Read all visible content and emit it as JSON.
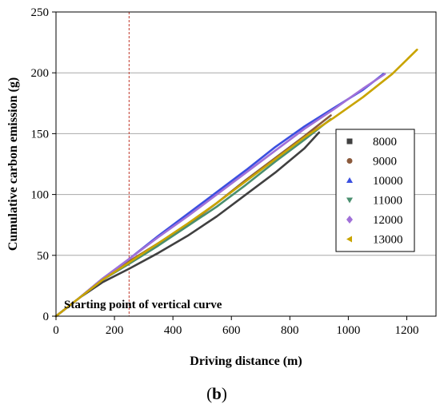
{
  "chart_data": {
    "type": "line",
    "xlabel": "Driving distance (m)",
    "ylabel": "Cumulative carbon emission (g)",
    "xlim": [
      0,
      1300
    ],
    "ylim": [
      0,
      250
    ],
    "xticks": [
      0,
      200,
      400,
      600,
      800,
      1000,
      1200
    ],
    "yticks": [
      0,
      50,
      100,
      150,
      200,
      250
    ],
    "grid": "horizontal",
    "legend_position": "right",
    "panel_label": "(b)",
    "annotation": {
      "text": "Starting point of vertical curve",
      "x_value": 250,
      "color": "#c0392b"
    },
    "series": [
      {
        "name": "8000",
        "color": "#404040",
        "marker": "square",
        "x": [
          0,
          80,
          160,
          250,
          350,
          450,
          550,
          650,
          750,
          850,
          900
        ],
        "y": [
          0,
          15,
          28,
          39,
          52,
          66,
          82,
          100,
          118,
          138,
          151
        ]
      },
      {
        "name": "9000",
        "color": "#8b5a3c",
        "marker": "circle",
        "x": [
          0,
          80,
          160,
          250,
          350,
          450,
          550,
          650,
          750,
          850,
          940
        ],
        "y": [
          0,
          15,
          31,
          45,
          60,
          75,
          93,
          112,
          130,
          148,
          165
        ]
      },
      {
        "name": "10000",
        "color": "#3a4fe0",
        "marker": "triangle-up",
        "x": [
          0,
          80,
          160,
          250,
          350,
          450,
          550,
          650,
          750,
          850,
          950,
          1050,
          1120
        ],
        "y": [
          0,
          15,
          31,
          47,
          66,
          84,
          102,
          120,
          139,
          156,
          171,
          186,
          199
        ]
      },
      {
        "name": "11000",
        "color": "#4a8f6f",
        "marker": "triangle-down",
        "x": [
          0,
          80,
          160,
          250,
          350,
          450,
          550,
          650,
          750,
          850,
          940
        ],
        "y": [
          0,
          15,
          30,
          43,
          58,
          74,
          90,
          108,
          127,
          145,
          162
        ]
      },
      {
        "name": "12000",
        "color": "#a070d8",
        "marker": "diamond",
        "x": [
          0,
          80,
          160,
          250,
          350,
          450,
          550,
          650,
          750,
          850,
          950,
          1050,
          1125
        ],
        "y": [
          0,
          15,
          31,
          47,
          65,
          82,
          100,
          118,
          136,
          154,
          170,
          187,
          199
        ]
      },
      {
        "name": "13000",
        "color": "#c9a400",
        "marker": "triangle-left",
        "x": [
          0,
          80,
          160,
          250,
          350,
          450,
          550,
          650,
          750,
          850,
          950,
          1050,
          1150,
          1235
        ],
        "y": [
          0,
          15,
          30,
          44,
          60,
          76,
          93,
          111,
          129,
          147,
          163,
          180,
          199,
          219
        ]
      }
    ]
  }
}
